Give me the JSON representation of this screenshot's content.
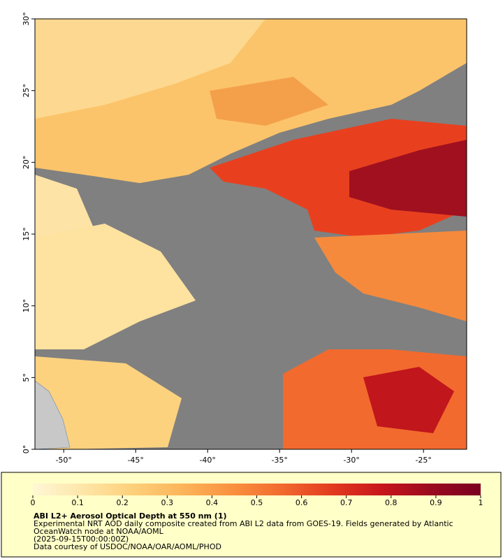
{
  "map": {
    "type": "map",
    "xlim": [
      -52,
      -22
    ],
    "ylim": [
      0,
      30
    ],
    "xticks": [
      {
        "value": -50,
        "label": "-50°"
      },
      {
        "value": -45,
        "label": "-45°"
      },
      {
        "value": -40,
        "label": "-40°"
      },
      {
        "value": -35,
        "label": "-35°"
      },
      {
        "value": -30,
        "label": "-30°"
      },
      {
        "value": -25,
        "label": "-25°"
      }
    ],
    "yticks": [
      {
        "value": 0,
        "label": "0°"
      },
      {
        "value": 5,
        "label": "5°"
      },
      {
        "value": 10,
        "label": "10°"
      },
      {
        "value": 15,
        "label": "15°"
      },
      {
        "value": 20,
        "label": "20°"
      },
      {
        "value": 25,
        "label": "25°"
      },
      {
        "value": 30,
        "label": "30°"
      }
    ],
    "colorbar": {
      "lim": [
        0,
        1
      ],
      "ticks": [
        0,
        0.1,
        0.2,
        0.3,
        0.4,
        0.5,
        0.6,
        0.7,
        0.8,
        0.9,
        1
      ],
      "colors": [
        "#fff7d6",
        "#fee6a8",
        "#fdd07a",
        "#fcb55a",
        "#f9913f",
        "#f26a2e",
        "#e23b1f",
        "#c8161c",
        "#9a0a1f",
        "#7a0020"
      ]
    },
    "title": "ABI L2+ Aerosol Optical Depth at 550 nm (1)",
    "caption": [
      "Experimental NRT AOD daily composite created from ABI L2 data from GOES-19. Fields generated by Atlantic",
      "OceanWatch node at NOAA/AOML",
      "(2025-09-15T00:00:00Z)",
      "Data courtesy of USDOC/NOAA/OAR/AOML/PHOD"
    ]
  }
}
